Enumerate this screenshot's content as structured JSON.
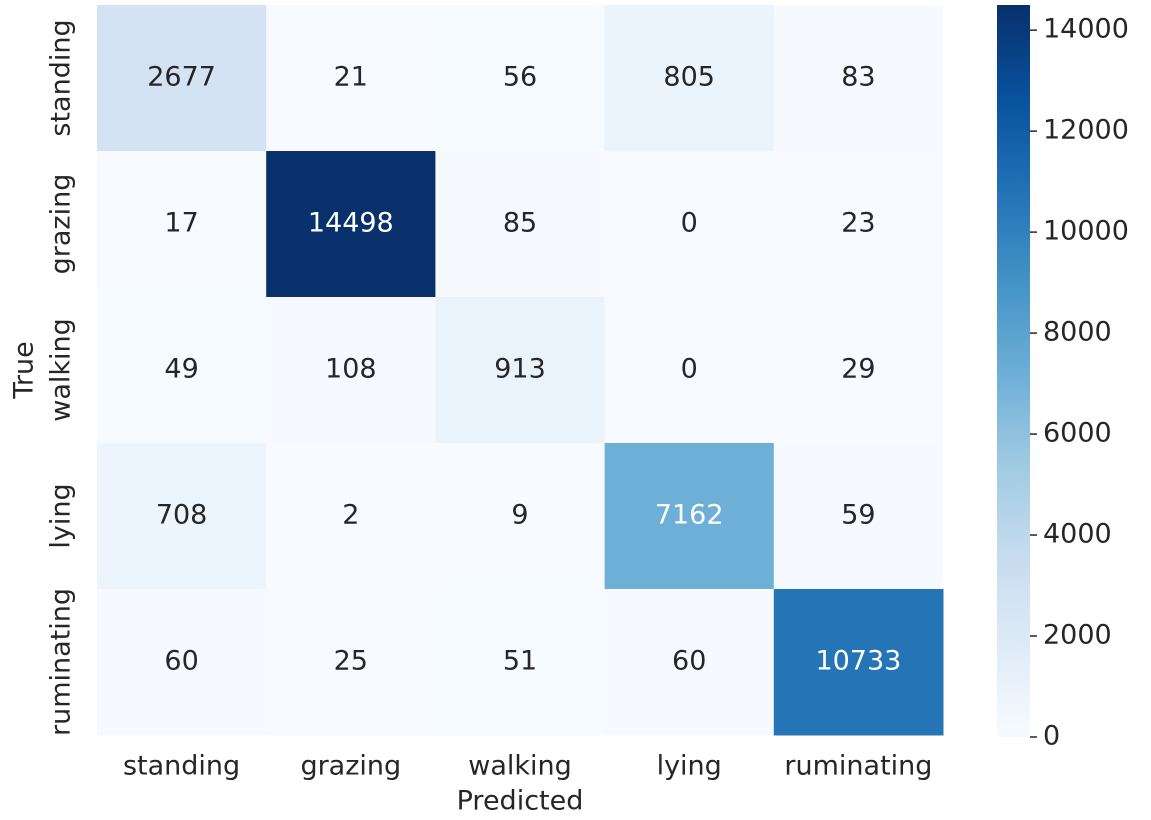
{
  "chart_data": {
    "type": "heatmap",
    "x": [
      "standing",
      "grazing",
      "walking",
      "lying",
      "ruminating"
    ],
    "y": [
      "standing",
      "grazing",
      "walking",
      "lying",
      "ruminating"
    ],
    "values": [
      [
        2677,
        21,
        56,
        805,
        83
      ],
      [
        17,
        14498,
        85,
        0,
        23
      ],
      [
        49,
        108,
        913,
        0,
        29
      ],
      [
        708,
        2,
        9,
        7162,
        59
      ],
      [
        60,
        25,
        51,
        60,
        10733
      ]
    ],
    "xlabel": "Predicted",
    "ylabel": "True",
    "colormap": "Blues",
    "zlim": [
      0,
      14498
    ],
    "zticks": [
      0,
      2000,
      4000,
      6000,
      8000,
      10000,
      12000,
      14000
    ]
  }
}
